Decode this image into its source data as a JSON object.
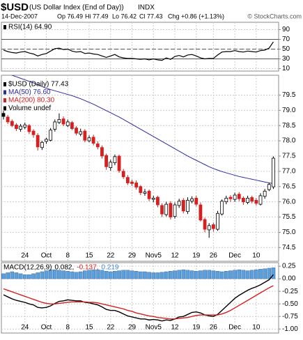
{
  "header": {
    "symbol": "$USD",
    "name": "(US Dollar Index (End of Day))",
    "exchange": "INDX",
    "source": "© StockCharts.com",
    "date": "14-Dec-2007",
    "quote": [
      "Op 76.49",
      "Hi 77.49",
      "Lo 76.42",
      "Cl 77.43",
      "Chg +0.86 (+1.13%)"
    ]
  },
  "chart_data": [
    {
      "type": "line",
      "legend": [
        {
          "text": "RSI(14) 64.90",
          "color": "#000000"
        }
      ],
      "series": [
        {
          "color": "#000000",
          "values": [
            48,
            45,
            43,
            42,
            44,
            45,
            42,
            40,
            36,
            39,
            41,
            46,
            51,
            52,
            49,
            50,
            46,
            44,
            45,
            41,
            42,
            40,
            39,
            36,
            33,
            36,
            39,
            34,
            32,
            31,
            31,
            30,
            29,
            30,
            28,
            30,
            28,
            27,
            32,
            29,
            35,
            37,
            34,
            38,
            39,
            36,
            32,
            30,
            31,
            31,
            38,
            44,
            45,
            45,
            47,
            45,
            44,
            46,
            45,
            44,
            47,
            48,
            52,
            64.9
          ]
        }
      ],
      "ylim": [
        5,
        105
      ],
      "yticks": [
        90,
        70,
        50,
        30,
        10
      ],
      "reference_lines": [
        70,
        50,
        30
      ],
      "grid": true
    },
    {
      "type": "candlestick",
      "categories": [
        null,
        null,
        null,
        null,
        null,
        "24",
        null,
        null,
        null,
        null,
        "Oct",
        null,
        null,
        null,
        null,
        "8",
        null,
        null,
        null,
        null,
        "15",
        null,
        null,
        null,
        null,
        "22",
        null,
        null,
        null,
        null,
        "29",
        null,
        null,
        null,
        null,
        "Nov5",
        null,
        null,
        null,
        null,
        "12",
        null,
        null,
        null,
        null,
        "19",
        null,
        null,
        null,
        "26",
        null,
        null,
        null,
        null,
        "Dec",
        null,
        null,
        null,
        null,
        "10",
        null,
        null,
        null,
        null
      ],
      "open": [
        78.9,
        78.78,
        78.64,
        78.52,
        78.38,
        78.45,
        78.5,
        78.32,
        78.18,
        77.78,
        77.98,
        78.02,
        78.38,
        78.6,
        78.72,
        78.5,
        78.6,
        78.42,
        78.22,
        78.32,
        78.0,
        78.12,
        77.9,
        77.78,
        77.52,
        77.12,
        77.28,
        77.5,
        77.0,
        76.8,
        76.65,
        76.62,
        76.5,
        76.28,
        76.35,
        76.08,
        76.15,
        75.88,
        75.58,
        75.95,
        75.52,
        75.88,
        76.05,
        75.68,
        76.02,
        76.12,
        75.9,
        75.42,
        75.08,
        75.25,
        75.1,
        75.6,
        76.0,
        76.15,
        76.08,
        76.25,
        76.12,
        75.98,
        76.14,
        76.05,
        75.92,
        76.18,
        76.4,
        76.49
      ],
      "high": [
        78.98,
        78.85,
        78.7,
        78.58,
        78.55,
        78.6,
        78.55,
        78.38,
        78.25,
        78.0,
        78.1,
        78.42,
        78.7,
        78.9,
        78.8,
        78.7,
        78.65,
        78.48,
        78.4,
        78.38,
        78.18,
        78.2,
        77.98,
        77.85,
        77.58,
        77.38,
        77.55,
        77.55,
        77.08,
        76.88,
        76.72,
        76.7,
        76.55,
        76.42,
        76.4,
        76.2,
        76.2,
        75.95,
        76.0,
        76.02,
        75.98,
        76.1,
        76.12,
        76.15,
        76.18,
        76.2,
        75.98,
        75.48,
        75.3,
        75.32,
        75.7,
        76.08,
        76.2,
        76.22,
        76.3,
        76.32,
        76.18,
        76.2,
        76.2,
        76.12,
        76.28,
        76.42,
        76.62,
        77.49
      ],
      "low": [
        78.7,
        78.55,
        78.45,
        78.32,
        78.3,
        78.38,
        78.22,
        78.1,
        77.68,
        77.7,
        77.9,
        77.98,
        78.3,
        78.55,
        78.48,
        78.45,
        78.35,
        78.18,
        78.15,
        77.95,
        77.95,
        77.85,
        77.72,
        77.42,
        77.05,
        77.02,
        77.2,
        76.95,
        76.75,
        76.55,
        76.52,
        76.4,
        76.22,
        76.2,
        76.02,
        75.98,
        75.82,
        75.5,
        75.52,
        75.42,
        75.45,
        75.8,
        75.62,
        75.6,
        75.95,
        75.85,
        75.35,
        75.0,
        74.82,
        75.02,
        75.05,
        75.55,
        75.92,
        76.0,
        76.0,
        76.02,
        75.9,
        75.92,
        75.95,
        75.88,
        75.88,
        76.1,
        76.35,
        76.42
      ],
      "close": [
        78.8,
        78.62,
        78.5,
        78.4,
        78.48,
        78.52,
        78.3,
        78.2,
        77.8,
        77.95,
        78.05,
        78.35,
        78.62,
        78.7,
        78.55,
        78.62,
        78.4,
        78.25,
        78.3,
        78.02,
        78.1,
        77.92,
        77.8,
        77.5,
        77.15,
        77.3,
        77.48,
        77.02,
        76.82,
        76.62,
        76.6,
        76.48,
        76.3,
        76.32,
        76.1,
        76.12,
        75.9,
        75.6,
        75.92,
        75.5,
        75.9,
        76.02,
        75.7,
        76.05,
        76.1,
        75.92,
        75.4,
        75.1,
        75.22,
        75.12,
        75.62,
        76.02,
        76.12,
        76.1,
        76.22,
        76.1,
        76.0,
        76.12,
        76.02,
        75.95,
        76.2,
        76.35,
        76.57,
        77.43
      ],
      "color": "#000000",
      "down_color": "#d42020",
      "series": [
        {
          "color": "#2b2b9a",
          "values": [
            80.25,
            80.2,
            80.15,
            80.1,
            80.05,
            80.0,
            79.95,
            79.9,
            79.84,
            79.78,
            79.72,
            79.68,
            79.64,
            79.6,
            79.56,
            79.52,
            79.48,
            79.43,
            79.38,
            79.32,
            79.26,
            79.2,
            79.13,
            79.06,
            78.99,
            78.92,
            78.85,
            78.78,
            78.7,
            78.62,
            78.54,
            78.46,
            78.38,
            78.3,
            78.22,
            78.14,
            78.06,
            77.98,
            77.9,
            77.82,
            77.74,
            77.66,
            77.58,
            77.5,
            77.43,
            77.36,
            77.29,
            77.22,
            77.15,
            77.09,
            77.04,
            76.99,
            76.95,
            76.91,
            76.87,
            76.83,
            76.8,
            76.77,
            76.74,
            76.71,
            76.68,
            76.65,
            76.62,
            76.6
          ]
        }
      ],
      "legend": [
        {
          "text": "$USD (Daily) 77.43",
          "color": "#000000"
        },
        {
          "text": "MA(50) 76.60",
          "color": "#2b2b9a"
        },
        {
          "text": "MA(200) 80.30",
          "color": "#d42020"
        },
        {
          "text": "Volume undef",
          "color": "#000000"
        }
      ],
      "ylim": [
        74.05,
        80.15
      ],
      "yticks": [
        79.5,
        {
          "value": 79.0,
          "label": "79.0"
        },
        78.5,
        {
          "value": 78.0,
          "label": "78.0"
        },
        77.5,
        {
          "value": 77.0,
          "label": "77.0"
        },
        76.5,
        {
          "value": 76.0,
          "label": "76.0"
        },
        75.5,
        {
          "value": 75.0,
          "label": "75.0"
        },
        74.5
      ],
      "grid": true
    },
    {
      "type": "macd",
      "legend": [
        {
          "text": "MACD(12,26,9)",
          "color": "#000000"
        },
        {
          "text": "0.082,",
          "color": "#000000"
        },
        {
          "text": "-0.137,",
          "color": "#d42020"
        },
        {
          "text": "0.219",
          "color": "#3a86d0"
        }
      ],
      "series": [
        {
          "kind": "line",
          "color": "#000000",
          "values": [
            -0.32,
            -0.36,
            -0.4,
            -0.43,
            -0.45,
            -0.47,
            -0.5,
            -0.52,
            -0.57,
            -0.58,
            -0.57,
            -0.54,
            -0.49,
            -0.45,
            -0.44,
            -0.42,
            -0.43,
            -0.44,
            -0.44,
            -0.47,
            -0.48,
            -0.5,
            -0.52,
            -0.56,
            -0.61,
            -0.63,
            -0.63,
            -0.66,
            -0.7,
            -0.74,
            -0.76,
            -0.78,
            -0.8,
            -0.8,
            -0.82,
            -0.81,
            -0.82,
            -0.84,
            -0.82,
            -0.83,
            -0.8,
            -0.76,
            -0.75,
            -0.71,
            -0.67,
            -0.66,
            -0.68,
            -0.72,
            -0.74,
            -0.75,
            -0.71,
            -0.63,
            -0.55,
            -0.47,
            -0.39,
            -0.33,
            -0.28,
            -0.23,
            -0.19,
            -0.16,
            -0.12,
            -0.07,
            -0.02,
            0.082
          ]
        },
        {
          "kind": "line",
          "color": "#d42020",
          "values": [
            -0.2,
            -0.23,
            -0.26,
            -0.29,
            -0.32,
            -0.35,
            -0.38,
            -0.41,
            -0.44,
            -0.47,
            -0.49,
            -0.5,
            -0.5,
            -0.49,
            -0.48,
            -0.47,
            -0.46,
            -0.46,
            -0.46,
            -0.46,
            -0.47,
            -0.47,
            -0.48,
            -0.5,
            -0.52,
            -0.54,
            -0.56,
            -0.58,
            -0.6,
            -0.63,
            -0.65,
            -0.68,
            -0.7,
            -0.72,
            -0.74,
            -0.75,
            -0.77,
            -0.78,
            -0.79,
            -0.8,
            -0.8,
            -0.79,
            -0.78,
            -0.77,
            -0.75,
            -0.73,
            -0.72,
            -0.72,
            -0.72,
            -0.72,
            -0.72,
            -0.7,
            -0.67,
            -0.63,
            -0.58,
            -0.53,
            -0.48,
            -0.43,
            -0.38,
            -0.33,
            -0.28,
            -0.23,
            -0.18,
            -0.137
          ]
        },
        {
          "kind": "histogram",
          "color": "#5b9fdc",
          "values": [
            0.1,
            0.12,
            0.14,
            0.12,
            0.1,
            0.08,
            0.08,
            0.1,
            0.12,
            0.14,
            0.16,
            0.18,
            0.18,
            0.17,
            0.16,
            0.15,
            0.14,
            0.13,
            0.14,
            0.16,
            0.17,
            0.18,
            0.18,
            0.17,
            0.15,
            0.14,
            0.15,
            0.16,
            0.17,
            0.17,
            0.16,
            0.15,
            0.14,
            0.14,
            0.13,
            0.12,
            0.12,
            0.13,
            0.14,
            0.15,
            0.16,
            0.17,
            0.18,
            0.17,
            0.16,
            0.15,
            0.16,
            0.17,
            0.17,
            0.16,
            0.15,
            0.14,
            0.15,
            0.16,
            0.17,
            0.18,
            0.17,
            0.16,
            0.17,
            0.18,
            0.19,
            0.2,
            0.21,
            0.219
          ]
        }
      ],
      "ylim": [
        -1.08,
        0.32
      ],
      "yticks": [
        0.25,
        {
          "value": 0,
          "label": "0.00"
        },
        -0.25,
        {
          "value": -0.5,
          "label": "-0.50"
        },
        -0.75,
        {
          "value": -1,
          "label": "-1.00"
        }
      ],
      "grid": true
    }
  ]
}
